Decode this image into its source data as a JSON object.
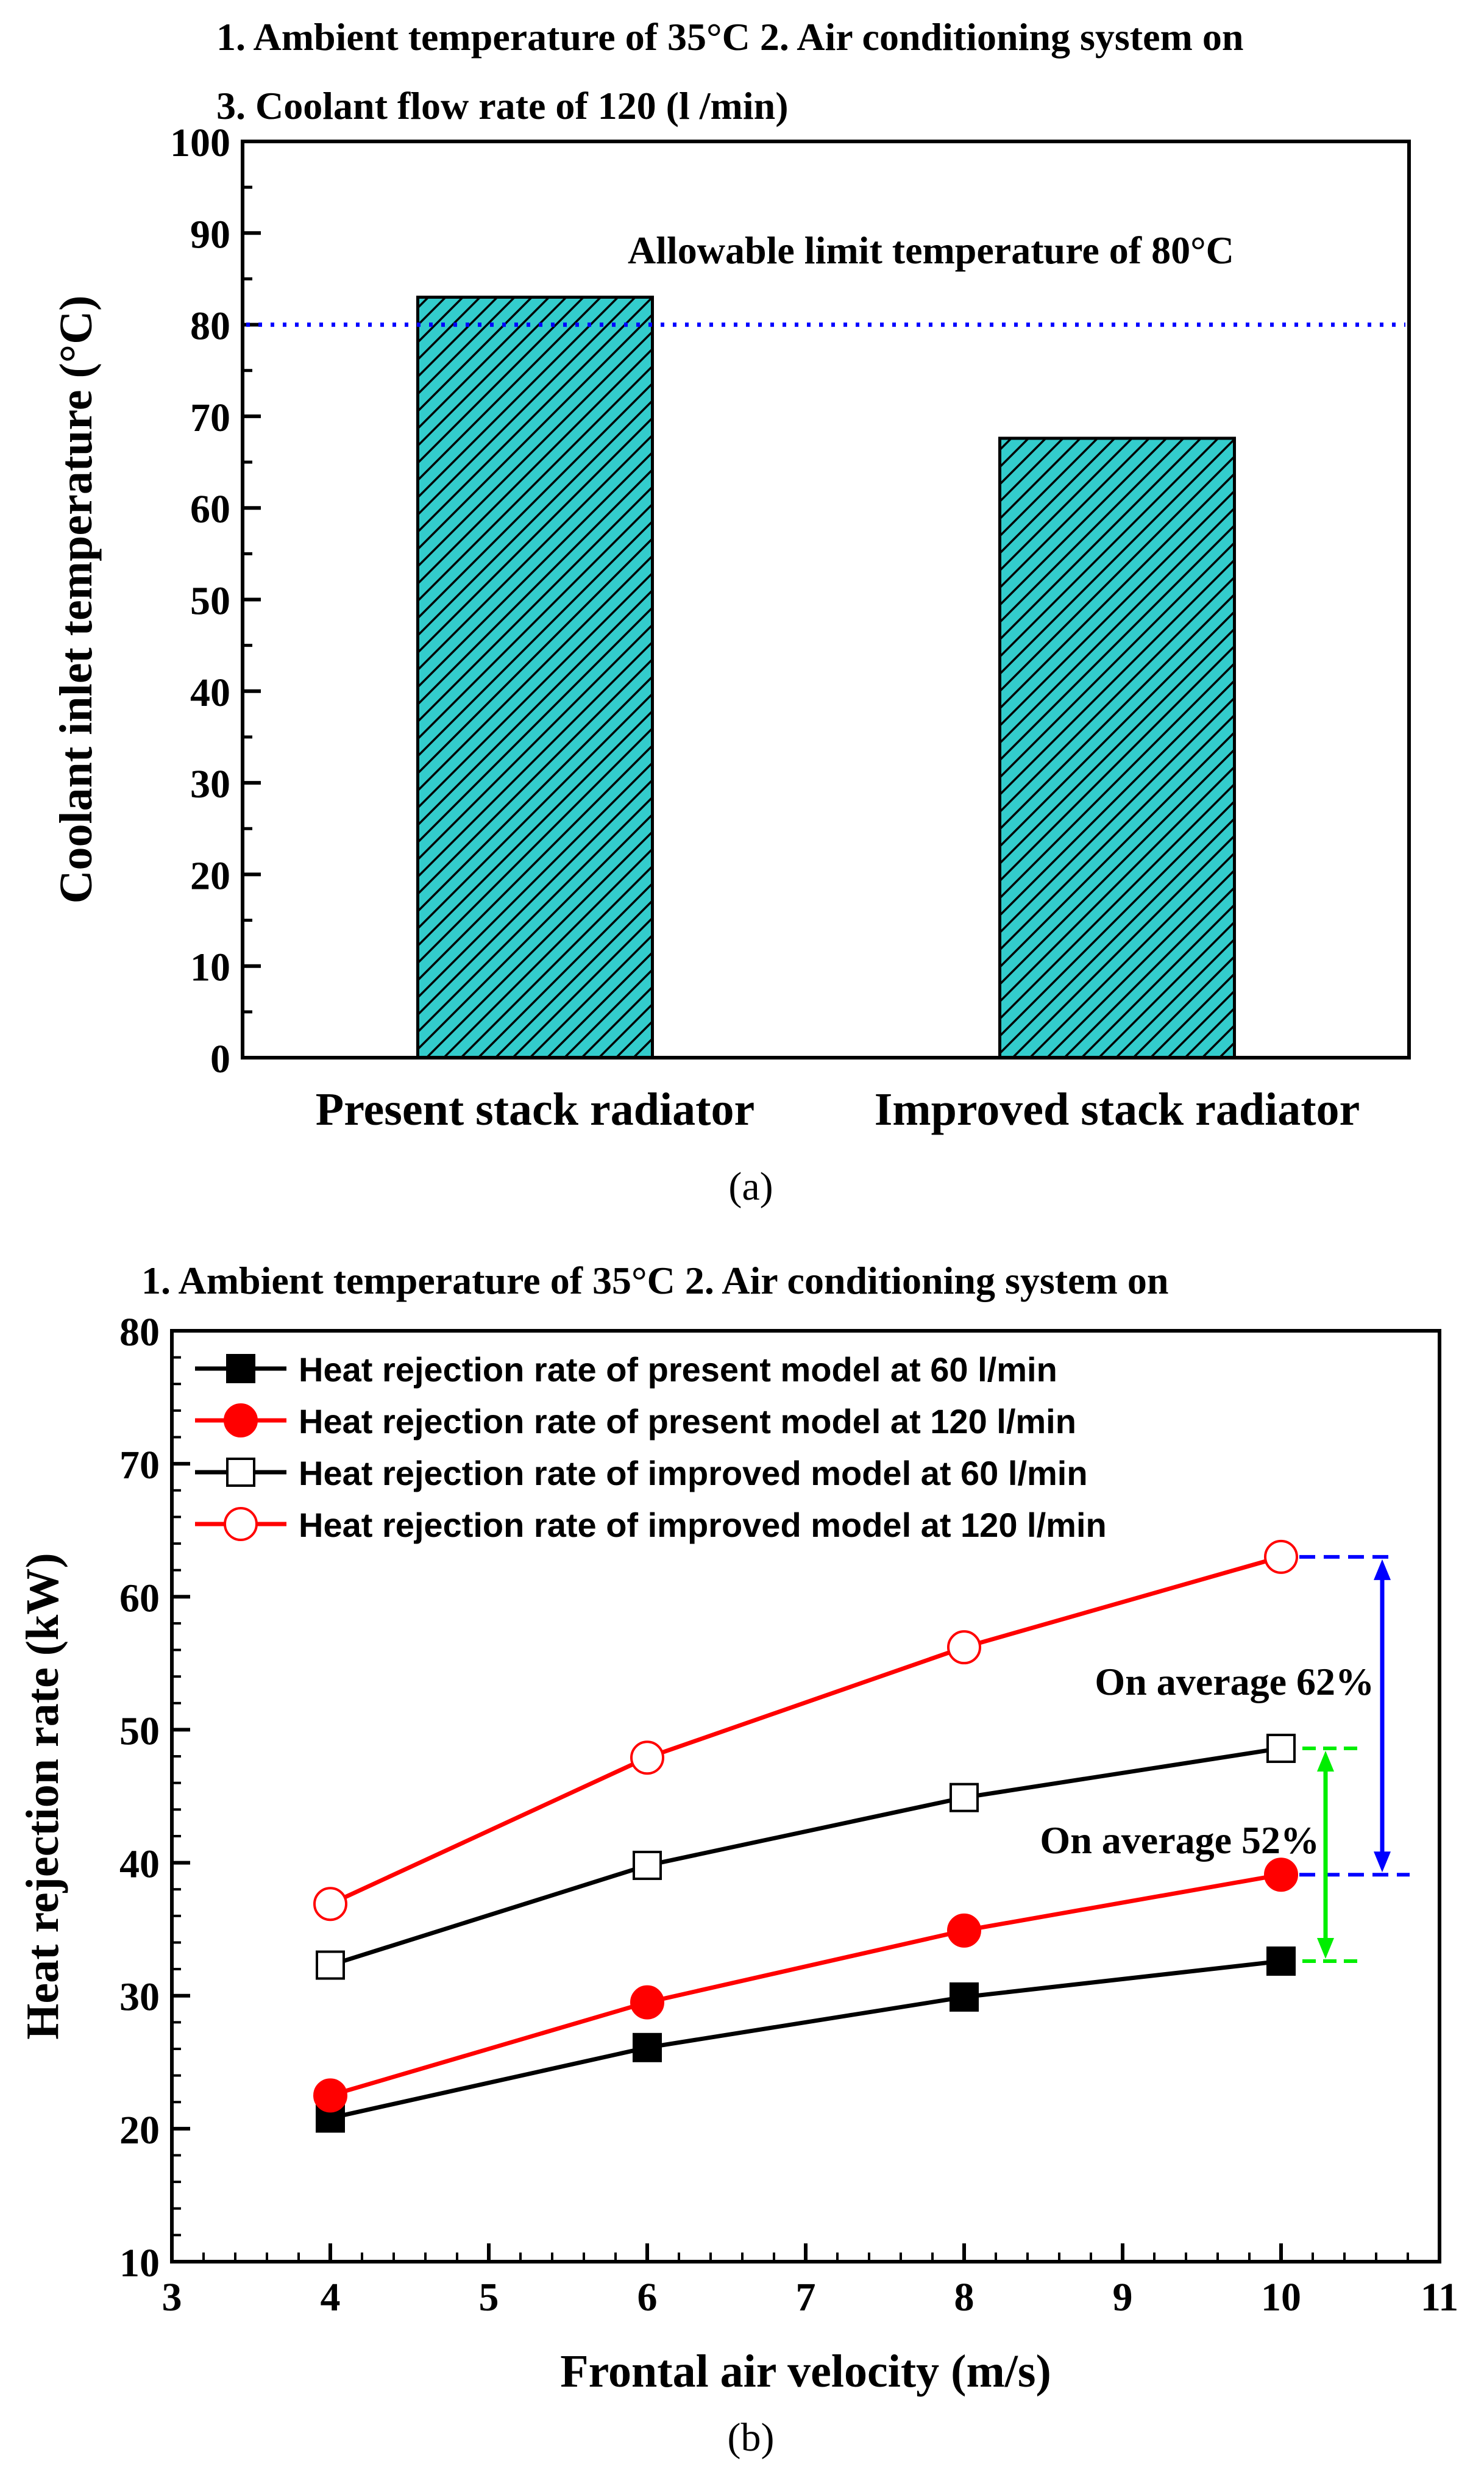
{
  "chart_data": [
    {
      "type": "bar",
      "panel_label": "(a)",
      "title_line1": "1. Ambient temperature of 35°C   2. Air conditioning system on",
      "title_line2": "3. Coolant flow rate of 120 (l /min)",
      "categories": [
        "Present stack radiator",
        "Improved stack radiator"
      ],
      "values": [
        83,
        67.6
      ],
      "ylabel": "Coolant inlet temperature (°C)",
      "ylim": [
        0,
        100
      ],
      "yticks": [
        0,
        10,
        20,
        30,
        40,
        50,
        60,
        70,
        80,
        90,
        100
      ],
      "reference_line": {
        "value": 80,
        "label": "Allowable limit temperature of 80°C"
      },
      "colors": {
        "bar_fill": "#33cccc",
        "hatch": "#000000",
        "reference_line": "#0000ff"
      }
    },
    {
      "type": "line",
      "panel_label": "(b)",
      "title_line1": "1. Ambient temperature of 35°C   2. Air conditioning system on",
      "xlabel": "Frontal air velocity (m/s)",
      "ylabel": "Heat rejection rate (kW)",
      "xlim": [
        3,
        11
      ],
      "ylim": [
        10,
        80
      ],
      "xticks": [
        3,
        4,
        5,
        6,
        7,
        8,
        9,
        10,
        11
      ],
      "yticks": [
        10,
        20,
        30,
        40,
        50,
        60,
        70,
        80
      ],
      "x": [
        4,
        6,
        8,
        10
      ],
      "series": [
        {
          "name": "Heat rejection rate of present model at 60  l/min",
          "values": [
            20.8,
            26.1,
            29.9,
            32.6
          ],
          "color": "#000000",
          "marker": "filled-square"
        },
        {
          "name": "Heat rejection rate of present model at 120  l/min",
          "values": [
            22.5,
            29.5,
            34.9,
            39.1
          ],
          "color": "#ff0000",
          "marker": "filled-circle"
        },
        {
          "name": "Heat rejection rate of improved model at 60  l/min",
          "values": [
            32.3,
            39.8,
            44.9,
            48.6
          ],
          "color": "#000000",
          "marker": "open-square"
        },
        {
          "name": "Heat rejection rate of improved model at 120  l/min",
          "values": [
            36.9,
            47.9,
            56.2,
            63.0
          ],
          "color": "#ff0000",
          "marker": "open-circle"
        }
      ],
      "annotations": [
        {
          "text": "On average 62%",
          "x": 10,
          "from": 39.1,
          "to": 63.0,
          "color": "#0000ff"
        },
        {
          "text": "On average 52%",
          "x": 10,
          "from": 32.6,
          "to": 48.6,
          "color": "#00ee00"
        }
      ]
    }
  ]
}
